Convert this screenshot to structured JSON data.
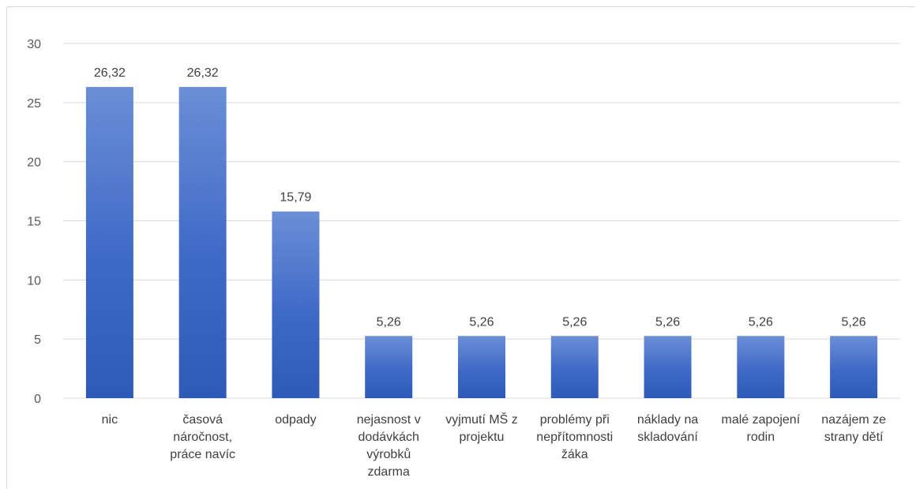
{
  "chart_data": {
    "type": "bar",
    "title": "",
    "xlabel": "",
    "ylabel": "",
    "ylim": [
      0,
      30
    ],
    "yticks": [
      0,
      5,
      10,
      15,
      20,
      25,
      30
    ],
    "grid": true,
    "legend": "none",
    "data_labels": true,
    "bar_color": "#4472c4",
    "categories": [
      [
        "nic"
      ],
      [
        "časová",
        "náročnost,",
        "práce navíc"
      ],
      [
        "odpady"
      ],
      [
        "nejasnost v",
        "dodávkách",
        "výrobků",
        "zdarma"
      ],
      [
        "vyjmutí MŠ z",
        "projektu"
      ],
      [
        "problémy při",
        "nepřítomnosti",
        "žáka"
      ],
      [
        "náklady na",
        "skladování"
      ],
      [
        "malé zapojení",
        "rodin"
      ],
      [
        "nazájem ze",
        "strany dětí"
      ]
    ],
    "values": [
      26.32,
      26.32,
      15.79,
      5.26,
      5.26,
      5.26,
      5.26,
      5.26,
      5.26
    ],
    "value_labels": [
      "26,32",
      "26,32",
      "15,79",
      "5,26",
      "5,26",
      "5,26",
      "5,26",
      "5,26",
      "5,26"
    ]
  }
}
